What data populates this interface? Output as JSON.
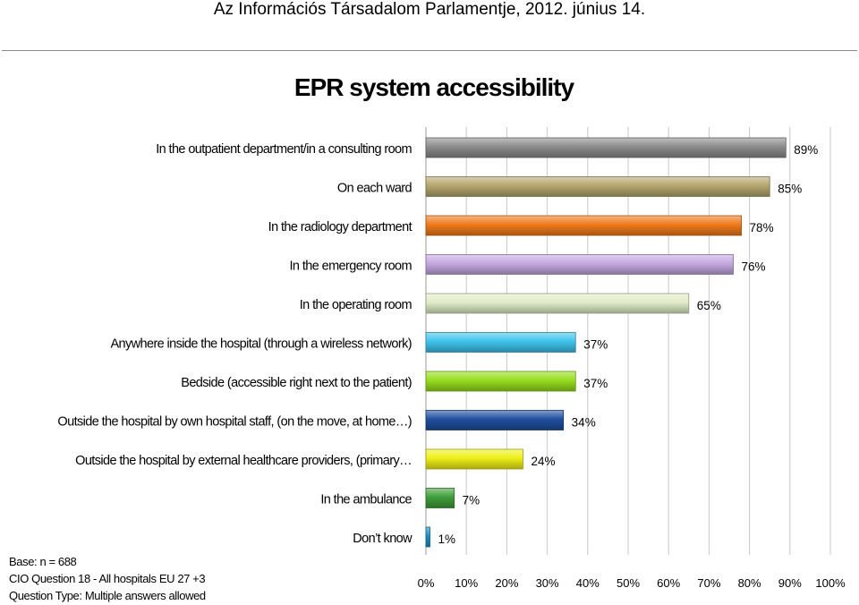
{
  "page_header": "Az Információs Társadalom Parlamentje, 2012. június 14.",
  "chart_data": {
    "type": "bar",
    "orientation": "horizontal",
    "title": "EPR system accessibility",
    "categories": [
      "In the outpatient department/in a consulting room",
      "On each ward",
      "In the radiology department",
      "In the emergency room",
      "In the operating room",
      "Anywhere inside the hospital (through a wireless network)",
      "Bedside (accessible right next to the patient)",
      "Outside the hospital  by own hospital staff, (on the move, at home…)",
      "Outside the hospital by external healthcare providers, (primary…",
      "In the ambulance",
      "Don’t know"
    ],
    "values": [
      89,
      85,
      78,
      76,
      65,
      37,
      37,
      34,
      24,
      7,
      1
    ],
    "value_labels": [
      "89%",
      "85%",
      "78%",
      "76%",
      "65%",
      "37%",
      "37%",
      "34%",
      "24%",
      "7%",
      "1%"
    ],
    "bar_colors": [
      "#8c8c8c",
      "#b5a66e",
      "#f07a1a",
      "#c4a8e0",
      "#e2ecc8",
      "#3fc4ec",
      "#96de1e",
      "#1f4f9e",
      "#eef018",
      "#3f9e3a",
      "#1e8fc6"
    ],
    "xlim": [
      0,
      100
    ],
    "x_ticks": [
      0,
      10,
      20,
      30,
      40,
      50,
      60,
      70,
      80,
      90,
      100
    ],
    "x_tick_labels": [
      "0%",
      "10%",
      "20%",
      "30%",
      "40%",
      "50%",
      "60%",
      "70%",
      "80%",
      "90%",
      "100%"
    ],
    "grid": true,
    "legend": "none"
  },
  "footnote": {
    "base": "Base: n = 688",
    "question": "CIO Question 18 - All hospitals EU 27 +3",
    "question_type": "Question Type: Multiple answers allowed"
  }
}
